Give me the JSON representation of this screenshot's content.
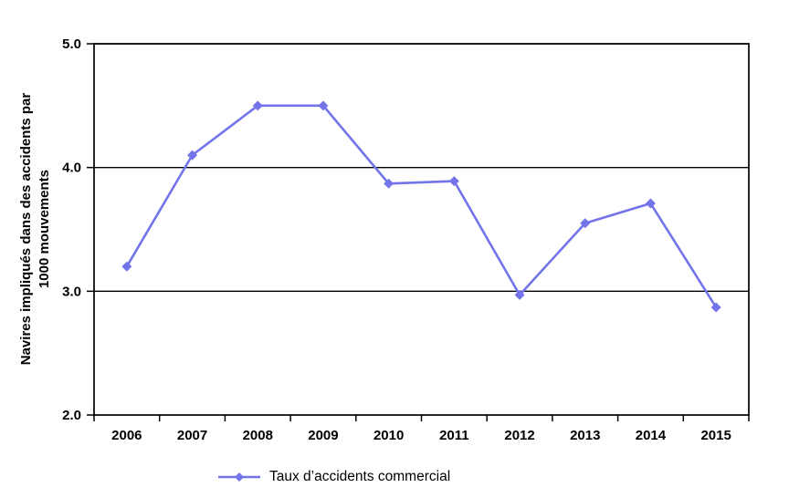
{
  "chart_data": {
    "type": "line",
    "title": "",
    "categories": [
      "2006",
      "2007",
      "2008",
      "2009",
      "2010",
      "2011",
      "2012",
      "2013",
      "2014",
      "2015"
    ],
    "series": [
      {
        "name": "Taux d’accidents commercial",
        "values": [
          3.2,
          4.1,
          4.5,
          4.5,
          3.87,
          3.89,
          2.97,
          3.55,
          3.71,
          2.87
        ],
        "color": "#7474ea",
        "marker": "diamond"
      }
    ],
    "xlabel": "",
    "ylabel_line1": "Navires impliqués dans des accidents par",
    "ylabel_line2": "1000 mouvements",
    "ylim": [
      2.0,
      5.0
    ],
    "yticks": [
      2.0,
      3.0,
      4.0,
      5.0
    ],
    "ytick_labels": [
      "2.0",
      "3.0",
      "4.0",
      "5.0"
    ],
    "gridlines": [
      3.0,
      4.0,
      5.0
    ],
    "grid_color": "#000000",
    "axis_color": "#000000",
    "legend_position": "bottom"
  }
}
